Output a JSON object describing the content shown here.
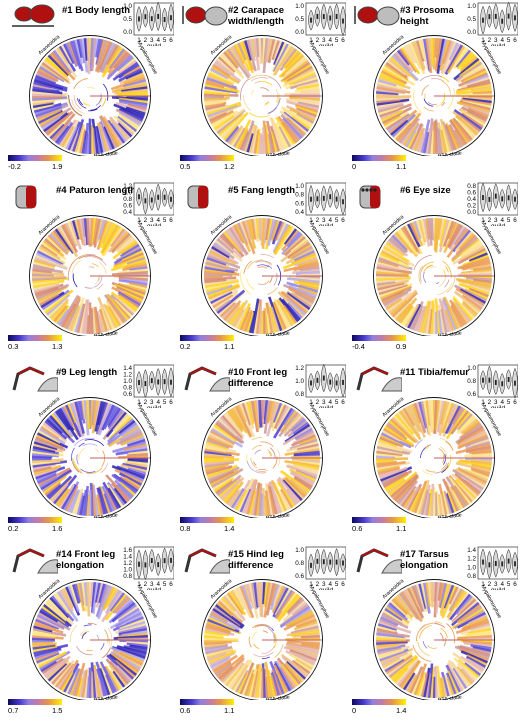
{
  "violin": {
    "guild_label": "guild",
    "x_ticks": [
      "1",
      "2",
      "3",
      "4",
      "5",
      "6"
    ]
  },
  "clades": {
    "araneoidea": "Araneoidea",
    "mygalomorphae": "Mygalomorphae",
    "rta": "RTA-clade"
  },
  "panels": [
    {
      "id": "p1",
      "title_line1": "#1 Body length",
      "title_line2": "",
      "cb_min": "-0.2",
      "cb_max": "1.9",
      "y_ticks": [
        "1.0",
        "0.5",
        "0.0"
      ],
      "blue": 0.45,
      "icon": "body"
    },
    {
      "id": "p2",
      "title_line1": "#2 Carapace",
      "title_line2": "width/length",
      "cb_min": "0.5",
      "cb_max": "1.2",
      "y_ticks": [
        "1.0",
        "0.5",
        "0.0"
      ],
      "blue": 0.08,
      "icon": "carapace"
    },
    {
      "id": "p3",
      "title_line1": "#3 Prosoma",
      "title_line2": "height",
      "cb_min": "0",
      "cb_max": "1.1",
      "y_ticks": [
        "1.0",
        "0.5",
        "0.0"
      ],
      "blue": 0.1,
      "icon": "prosoma"
    },
    {
      "id": "p4",
      "title_line1": "#4 Paturon length",
      "title_line2": "",
      "cb_min": "0.3",
      "cb_max": "1.3",
      "y_ticks": [
        "1.2",
        "1.0",
        "0.8",
        "0.6",
        "0.4"
      ],
      "blue": 0.12,
      "icon": "paturon"
    },
    {
      "id": "p5",
      "title_line1": "#5 Fang length",
      "title_line2": "",
      "cb_min": "0.2",
      "cb_max": "1.1",
      "y_ticks": [
        "1.0",
        "0.8",
        "0.6",
        "0.4"
      ],
      "blue": 0.2,
      "icon": "fang"
    },
    {
      "id": "p6",
      "title_line1": "#6 Eye size",
      "title_line2": "",
      "cb_min": "-0.4",
      "cb_max": "0.9",
      "y_ticks": [
        "0.8",
        "0.6",
        "0.4",
        "0.2",
        "0.0"
      ],
      "blue": 0.05,
      "icon": "eye"
    },
    {
      "id": "p9",
      "title_line1": "#9 Leg length",
      "title_line2": "",
      "cb_min": "0.2",
      "cb_max": "1.6",
      "y_ticks": [
        "1.4",
        "1.2",
        "1.0",
        "0.8",
        "0.6"
      ],
      "blue": 0.55,
      "icon": "leg"
    },
    {
      "id": "p10",
      "title_line1": "#10 Front leg",
      "title_line2": "difference",
      "cb_min": "0.8",
      "cb_max": "1.4",
      "y_ticks": [
        "1.2",
        "1.0",
        "0.8"
      ],
      "blue": 0.1,
      "icon": "leg"
    },
    {
      "id": "p11",
      "title_line1": "#11 Tibia/femur",
      "title_line2": "",
      "cb_min": "0.6",
      "cb_max": "1.1",
      "y_ticks": [
        "1.0",
        "0.8",
        "0.6"
      ],
      "blue": 0.05,
      "icon": "leg"
    },
    {
      "id": "p14",
      "title_line1": "#14 Front leg",
      "title_line2": "elongation",
      "cb_min": "0.7",
      "cb_max": "1.5",
      "y_ticks": [
        "1.6",
        "1.4",
        "1.2",
        "1.0",
        "0.8"
      ],
      "blue": 0.4,
      "icon": "leg"
    },
    {
      "id": "p15",
      "title_line1": "#15 Hind leg",
      "title_line2": "difference",
      "cb_min": "0.6",
      "cb_max": "1.1",
      "y_ticks": [
        "1.0",
        "0.8",
        "0.6"
      ],
      "blue": 0.15,
      "icon": "leg"
    },
    {
      "id": "p17",
      "title_line1": "#17 Tarsus",
      "title_line2": "elongation",
      "cb_min": "0",
      "cb_max": "1.4",
      "y_ticks": [
        "1.4",
        "1.2",
        "1.0",
        "0.8"
      ],
      "blue": 0.2,
      "icon": "leg"
    }
  ]
}
